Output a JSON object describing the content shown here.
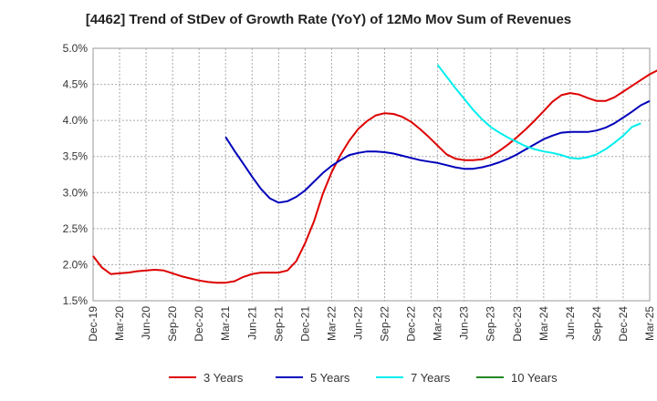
{
  "chart_data": {
    "type": "line",
    "title": "[4462]  Trend of StDev of Growth Rate (YoY) of 12Mo Mov Sum of Revenues",
    "xlabel": "",
    "ylabel": "",
    "ylim": [
      1.5,
      5.0
    ],
    "yticks": [
      "1.5%",
      "2.0%",
      "2.5%",
      "3.0%",
      "3.5%",
      "4.0%",
      "4.5%",
      "5.0%"
    ],
    "ytick_values": [
      1.5,
      2.0,
      2.5,
      3.0,
      3.5,
      4.0,
      4.5,
      5.0
    ],
    "xticks": [
      "Dec-19",
      "Mar-20",
      "Jun-20",
      "Sep-20",
      "Dec-20",
      "Mar-21",
      "Jun-21",
      "Sep-21",
      "Dec-21",
      "Mar-22",
      "Jun-22",
      "Sep-22",
      "Dec-22",
      "Mar-23",
      "Jun-23",
      "Sep-23",
      "Dec-23",
      "Mar-24",
      "Jun-24",
      "Sep-24",
      "Dec-24",
      "Mar-25"
    ],
    "grid": true,
    "legend_position": "bottom",
    "series": [
      {
        "name": "3 Years",
        "color": "#dd0000",
        "start_month_index": 0,
        "values": [
          2.12,
          1.96,
          1.87,
          1.88,
          1.89,
          1.91,
          1.92,
          1.93,
          1.92,
          1.88,
          1.84,
          1.81,
          1.78,
          1.76,
          1.75,
          1.75,
          1.77,
          1.83,
          1.87,
          1.89,
          1.89,
          1.89,
          1.92,
          2.05,
          2.3,
          2.6,
          2.98,
          3.28,
          3.52,
          3.72,
          3.88,
          3.99,
          4.07,
          4.1,
          4.09,
          4.05,
          3.98,
          3.88,
          3.77,
          3.65,
          3.53,
          3.47,
          3.45,
          3.45,
          3.46,
          3.5,
          3.58,
          3.67,
          3.77,
          3.88,
          4.0,
          4.13,
          4.26,
          4.35,
          4.38,
          4.36,
          4.31,
          4.27,
          4.27,
          4.32,
          4.4,
          4.48,
          4.56,
          4.64,
          4.7
        ]
      },
      {
        "name": "5 Years",
        "color": "#0000bb",
        "start_month_index": 15,
        "values": [
          3.77,
          3.58,
          3.4,
          3.22,
          3.05,
          2.92,
          2.86,
          2.88,
          2.94,
          3.03,
          3.15,
          3.27,
          3.37,
          3.45,
          3.52,
          3.55,
          3.57,
          3.57,
          3.56,
          3.54,
          3.51,
          3.48,
          3.45,
          3.43,
          3.41,
          3.38,
          3.35,
          3.33,
          3.33,
          3.35,
          3.38,
          3.42,
          3.47,
          3.53,
          3.6,
          3.67,
          3.74,
          3.79,
          3.83,
          3.84,
          3.84,
          3.84,
          3.86,
          3.9,
          3.96,
          4.04,
          4.12,
          4.21,
          4.27
        ]
      },
      {
        "name": "7 Years",
        "color": "#00eeee",
        "start_month_index": 39,
        "values": [
          4.77,
          4.61,
          4.45,
          4.3,
          4.15,
          4.02,
          3.91,
          3.83,
          3.76,
          3.7,
          3.64,
          3.6,
          3.57,
          3.55,
          3.52,
          3.48,
          3.47,
          3.49,
          3.53,
          3.6,
          3.69,
          3.79,
          3.91,
          3.96
        ]
      },
      {
        "name": "10 Years",
        "color": "#228822",
        "start_month_index": 0,
        "values": []
      }
    ]
  }
}
